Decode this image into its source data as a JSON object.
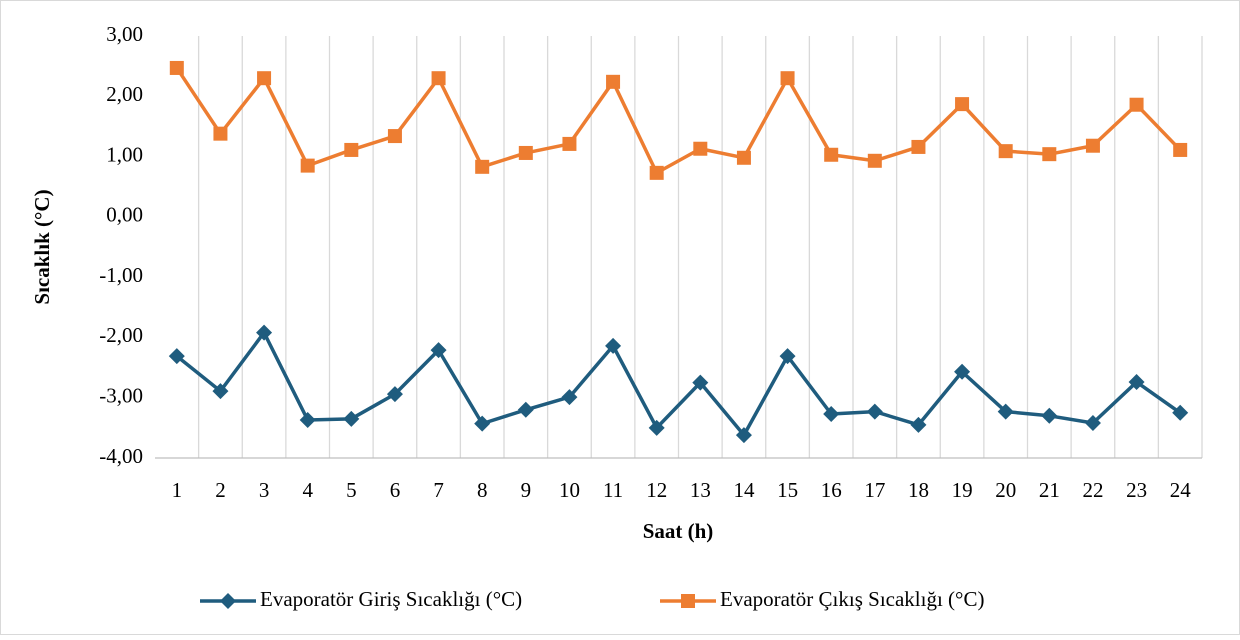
{
  "chart_data": {
    "type": "line",
    "ylabel": "Sıcaklık (°C)",
    "xlabel": "Saat (h)",
    "categories": [
      "1",
      "2",
      "3",
      "4",
      "5",
      "6",
      "7",
      "8",
      "9",
      "10",
      "11",
      "12",
      "13",
      "14",
      "15",
      "16",
      "17",
      "18",
      "19",
      "20",
      "21",
      "22",
      "23",
      "24"
    ],
    "series": [
      {
        "name": "Evaporatör Giriş Sıcaklığı (°C)",
        "color": "#1f5c7e",
        "marker": "diamond",
        "values": [
          -2.31,
          -2.89,
          -1.92,
          -3.37,
          -3.35,
          -2.94,
          -2.21,
          -3.43,
          -3.2,
          -2.99,
          -2.14,
          -3.5,
          -2.75,
          -3.62,
          -2.31,
          -3.27,
          -3.23,
          -3.45,
          -2.57,
          -3.23,
          -3.3,
          -3.42,
          -2.74,
          -3.25
        ]
      },
      {
        "name": "Evaporatör Çıkış Sıcaklığı (°C)",
        "color": "#ed7d31",
        "marker": "square",
        "values": [
          2.47,
          1.38,
          2.3,
          0.85,
          1.11,
          1.34,
          2.3,
          0.83,
          1.06,
          1.21,
          2.24,
          0.73,
          1.13,
          0.98,
          2.3,
          1.03,
          0.93,
          1.16,
          1.87,
          1.09,
          1.04,
          1.18,
          1.86,
          1.11
        ]
      }
    ],
    "ylim": [
      -4,
      3
    ],
    "yticks": [
      {
        "value": 3,
        "label": "3,00"
      },
      {
        "value": 2,
        "label": "2,00"
      },
      {
        "value": 1,
        "label": "1,00"
      },
      {
        "value": 0,
        "label": "0,00"
      },
      {
        "value": -1,
        "label": "-1,00"
      },
      {
        "value": -2,
        "label": "-2,00"
      },
      {
        "value": -3,
        "label": "-3,00"
      },
      {
        "value": -4,
        "label": "-4,00"
      }
    ],
    "grid": "x",
    "legend": "bottom"
  }
}
